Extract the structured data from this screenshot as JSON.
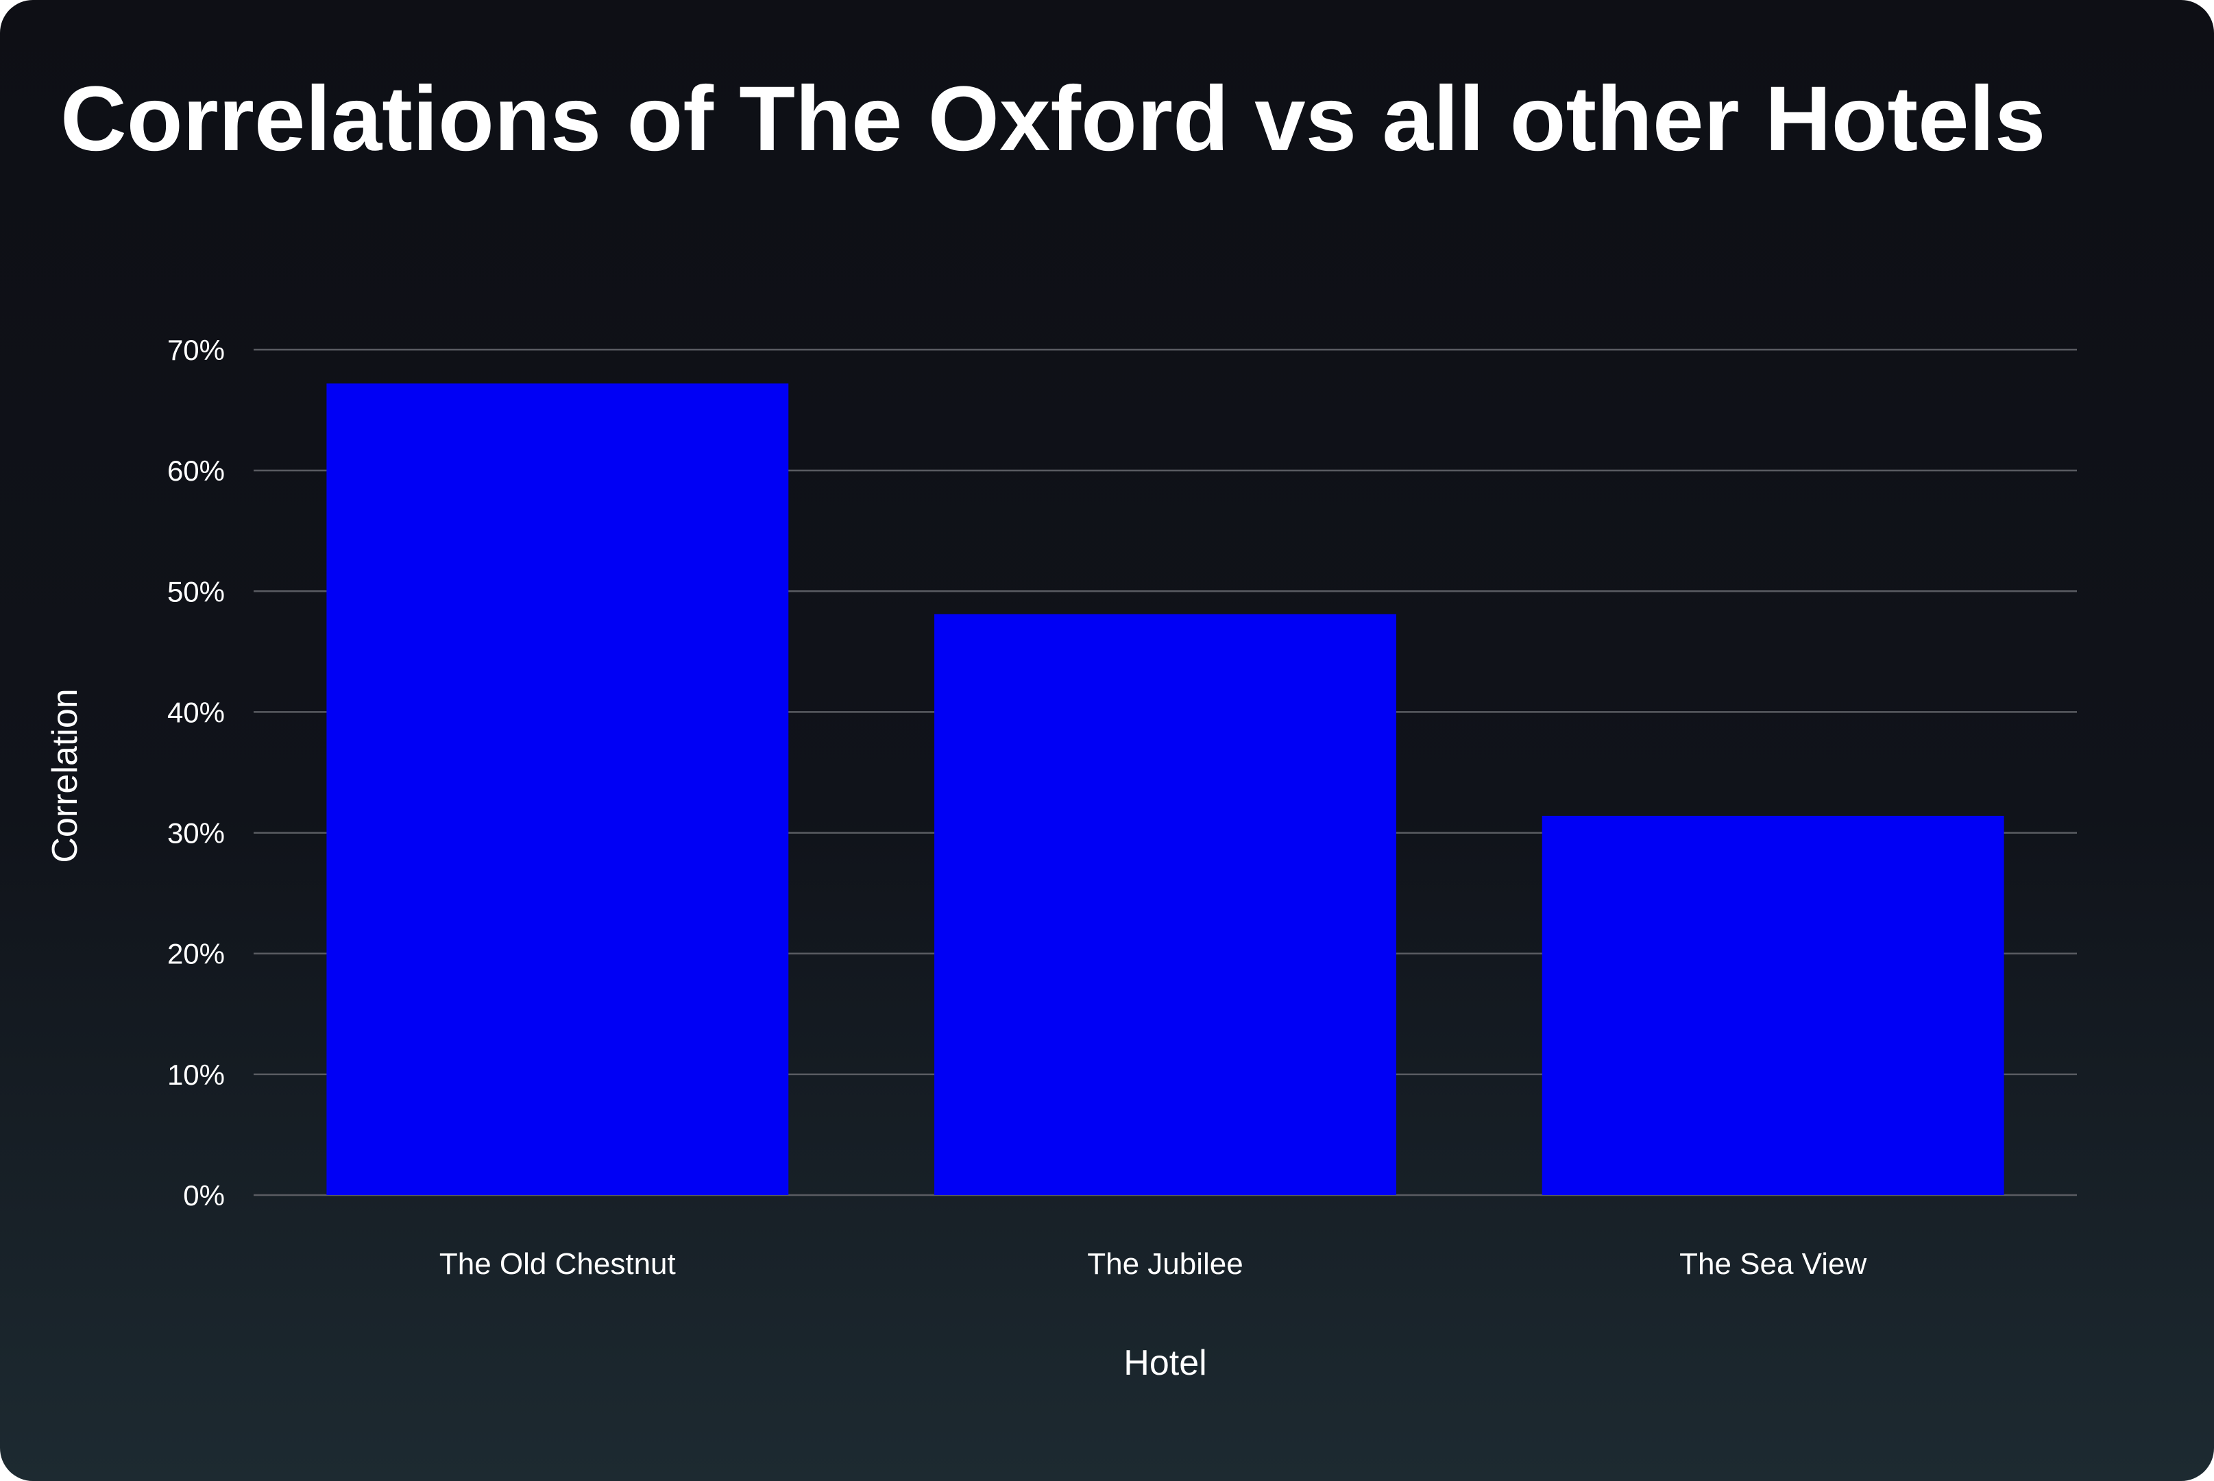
{
  "title": "Correlations of The Oxford vs all other Hotels",
  "colors": {
    "bar": "#0000f5",
    "grid": "#5a5c62",
    "text": "#ffffff"
  },
  "chart_data": {
    "type": "bar",
    "title": "Correlations of The Oxford vs all other Hotels",
    "xlabel": "Hotel",
    "ylabel": "Correlation",
    "categories": [
      "The Old Chestnut",
      "The Jubilee",
      "The Sea View"
    ],
    "values": [
      67.2,
      48.1,
      31.4
    ],
    "ylim": [
      0,
      70
    ],
    "yticks": [
      0,
      10,
      20,
      30,
      40,
      50,
      60,
      70
    ],
    "ytick_labels": [
      "0%",
      "10%",
      "20%",
      "30%",
      "40%",
      "50%",
      "60%",
      "70%"
    ],
    "grid": true,
    "legend": "none"
  }
}
